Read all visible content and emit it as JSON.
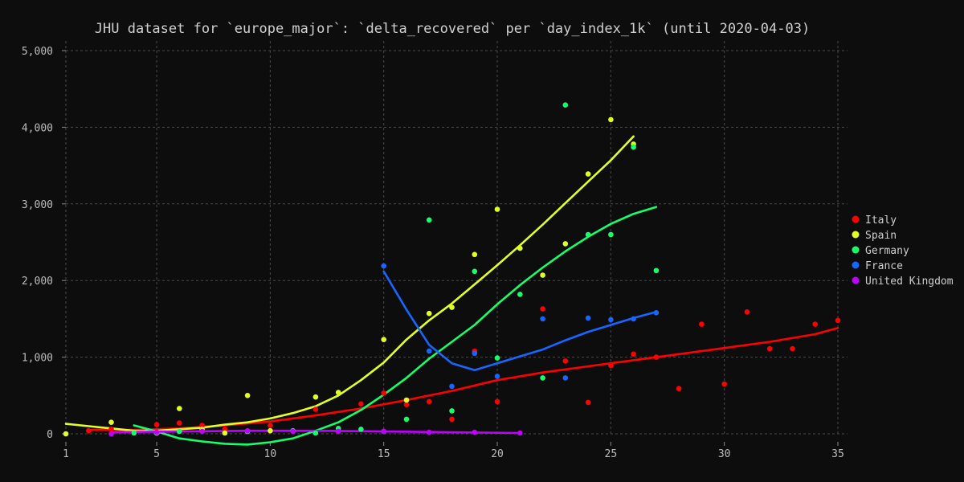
{
  "chart_data": {
    "type": "scatter",
    "title": "JHU dataset for `europe_major`: `delta_recovered` per `day_index_1k` (until 2020-04-03)",
    "xlabel": "",
    "ylabel": "",
    "xlim": [
      1,
      35
    ],
    "ylim": [
      0,
      5000
    ],
    "x_ticks": [
      1,
      5,
      10,
      15,
      20,
      25,
      30,
      35
    ],
    "y_ticks": [
      0,
      1000,
      2000,
      3000,
      4000,
      5000
    ],
    "y_tick_labels": [
      "0",
      "1,000",
      "2,000",
      "3,000",
      "4,000",
      "5,000"
    ],
    "grid": true,
    "legend_position": "right",
    "series": [
      {
        "name": "Italy",
        "color": "#ff0000",
        "points": [
          [
            2,
            40
          ],
          [
            3,
            60
          ],
          [
            5,
            120
          ],
          [
            6,
            140
          ],
          [
            7,
            110
          ],
          [
            8,
            60
          ],
          [
            10,
            110
          ],
          [
            12,
            320
          ],
          [
            14,
            390
          ],
          [
            15,
            530
          ],
          [
            16,
            380
          ],
          [
            17,
            420
          ],
          [
            18,
            190
          ],
          [
            19,
            1080
          ],
          [
            20,
            420
          ],
          [
            22,
            1630
          ],
          [
            23,
            950
          ],
          [
            24,
            410
          ],
          [
            25,
            890
          ],
          [
            26,
            1040
          ],
          [
            27,
            1000
          ],
          [
            28,
            590
          ],
          [
            29,
            1430
          ],
          [
            30,
            650
          ],
          [
            31,
            1590
          ],
          [
            32,
            1110
          ],
          [
            33,
            1110
          ],
          [
            34,
            1430
          ],
          [
            35,
            1480
          ]
        ],
        "trend": [
          [
            2,
            50
          ],
          [
            4,
            50
          ],
          [
            6,
            70
          ],
          [
            8,
            110
          ],
          [
            10,
            160
          ],
          [
            12,
            240
          ],
          [
            14,
            330
          ],
          [
            16,
            440
          ],
          [
            18,
            560
          ],
          [
            20,
            700
          ],
          [
            22,
            800
          ],
          [
            24,
            880
          ],
          [
            26,
            960
          ],
          [
            28,
            1040
          ],
          [
            30,
            1120
          ],
          [
            32,
            1200
          ],
          [
            34,
            1300
          ],
          [
            35,
            1380
          ]
        ]
      },
      {
        "name": "Spain",
        "color": "#e2ff24",
        "points": [
          [
            1,
            0
          ],
          [
            3,
            150
          ],
          [
            5,
            10
          ],
          [
            6,
            330
          ],
          [
            7,
            60
          ],
          [
            8,
            10
          ],
          [
            9,
            500
          ],
          [
            10,
            40
          ],
          [
            12,
            480
          ],
          [
            13,
            540
          ],
          [
            15,
            1230
          ],
          [
            16,
            440
          ],
          [
            17,
            1570
          ],
          [
            18,
            1650
          ],
          [
            19,
            2340
          ],
          [
            20,
            2930
          ],
          [
            21,
            2420
          ],
          [
            22,
            2070
          ],
          [
            23,
            2480
          ],
          [
            24,
            3390
          ],
          [
            25,
            4100
          ],
          [
            26,
            3780
          ]
        ],
        "trend": [
          [
            1,
            130
          ],
          [
            2,
            100
          ],
          [
            3,
            70
          ],
          [
            4,
            40
          ],
          [
            5,
            40
          ],
          [
            6,
            60
          ],
          [
            7,
            80
          ],
          [
            8,
            120
          ],
          [
            9,
            150
          ],
          [
            10,
            200
          ],
          [
            11,
            270
          ],
          [
            12,
            360
          ],
          [
            13,
            500
          ],
          [
            14,
            700
          ],
          [
            15,
            930
          ],
          [
            16,
            1230
          ],
          [
            17,
            1480
          ],
          [
            18,
            1700
          ],
          [
            19,
            1950
          ],
          [
            20,
            2200
          ],
          [
            21,
            2460
          ],
          [
            22,
            2730
          ],
          [
            23,
            3010
          ],
          [
            24,
            3290
          ],
          [
            25,
            3570
          ],
          [
            26,
            3880
          ]
        ]
      },
      {
        "name": "Germany",
        "color": "#14ff6a",
        "points": [
          [
            4,
            10
          ],
          [
            5,
            10
          ],
          [
            6,
            30
          ],
          [
            9,
            30
          ],
          [
            11,
            40
          ],
          [
            12,
            10
          ],
          [
            13,
            70
          ],
          [
            14,
            60
          ],
          [
            15,
            30
          ],
          [
            16,
            190
          ],
          [
            17,
            2790
          ],
          [
            18,
            300
          ],
          [
            19,
            2120
          ],
          [
            20,
            990
          ],
          [
            21,
            1820
          ],
          [
            22,
            730
          ],
          [
            23,
            4290
          ],
          [
            24,
            2600
          ],
          [
            25,
            2600
          ],
          [
            26,
            3740
          ],
          [
            27,
            2130
          ]
        ],
        "trend": [
          [
            4,
            110
          ],
          [
            5,
            30
          ],
          [
            6,
            -60
          ],
          [
            7,
            -100
          ],
          [
            8,
            -130
          ],
          [
            9,
            -140
          ],
          [
            10,
            -110
          ],
          [
            11,
            -60
          ],
          [
            12,
            40
          ],
          [
            13,
            150
          ],
          [
            14,
            310
          ],
          [
            15,
            510
          ],
          [
            16,
            730
          ],
          [
            17,
            980
          ],
          [
            18,
            1200
          ],
          [
            19,
            1420
          ],
          [
            20,
            1690
          ],
          [
            21,
            1940
          ],
          [
            22,
            2170
          ],
          [
            23,
            2380
          ],
          [
            24,
            2570
          ],
          [
            25,
            2740
          ],
          [
            26,
            2870
          ],
          [
            27,
            2960
          ]
        ]
      },
      {
        "name": "France",
        "color": "#1766ff",
        "points": [
          [
            15,
            2190
          ],
          [
            17,
            1080
          ],
          [
            18,
            620
          ],
          [
            19,
            1050
          ],
          [
            20,
            750
          ],
          [
            22,
            1500
          ],
          [
            23,
            730
          ],
          [
            24,
            1510
          ],
          [
            25,
            1490
          ],
          [
            26,
            1500
          ],
          [
            27,
            1580
          ]
        ],
        "trend": [
          [
            15,
            2120
          ],
          [
            16,
            1620
          ],
          [
            17,
            1160
          ],
          [
            18,
            920
          ],
          [
            19,
            830
          ],
          [
            20,
            920
          ],
          [
            21,
            1010
          ],
          [
            22,
            1100
          ],
          [
            23,
            1220
          ],
          [
            24,
            1330
          ],
          [
            25,
            1420
          ],
          [
            26,
            1510
          ],
          [
            27,
            1590
          ]
        ]
      },
      {
        "name": "United Kingdom",
        "color": "#c000ff",
        "points": [
          [
            3,
            0
          ],
          [
            5,
            20
          ],
          [
            7,
            30
          ],
          [
            9,
            40
          ],
          [
            11,
            30
          ],
          [
            13,
            30
          ],
          [
            15,
            30
          ],
          [
            17,
            20
          ],
          [
            19,
            20
          ],
          [
            21,
            10
          ]
        ],
        "trend": [
          [
            3,
            20
          ],
          [
            6,
            30
          ],
          [
            9,
            40
          ],
          [
            12,
            40
          ],
          [
            15,
            30
          ],
          [
            18,
            20
          ],
          [
            21,
            10
          ]
        ]
      }
    ]
  }
}
